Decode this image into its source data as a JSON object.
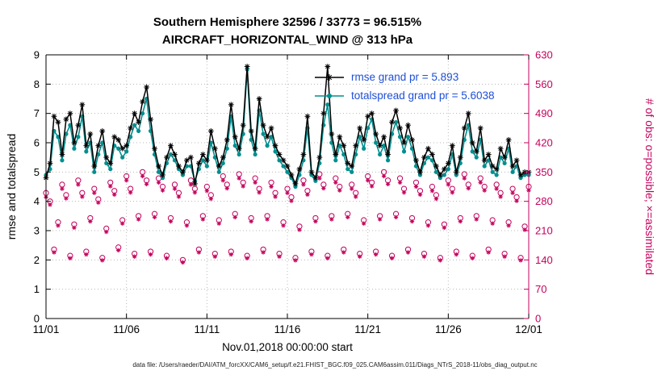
{
  "chart_data": {
    "type": "line",
    "title": "Southern Hemisphere 32596 / 33773 = 96.515%",
    "subtitle": "AIRCRAFT_HORIZONTAL_WIND @ 313 hPa",
    "xlabel": "Nov.01,2018 00:00:00 start",
    "ylabel_left": "rmse and totalspread",
    "ylabel_right": "# of obs: o=possible; ×=assimilated",
    "caption": "data file: /Users/raeder/DAI/ATM_forcXX/CAM6_setup/f.e21.FHIST_BGC.f09_025.CAM6assim.011/Diags_NTrS_2018-11/obs_diag_output.nc",
    "xlim": [
      0,
      30
    ],
    "ylim_left": [
      0,
      9
    ],
    "ylim_right": [
      0,
      630
    ],
    "yticks_left": [
      0,
      1,
      2,
      3,
      4,
      5,
      6,
      7,
      8,
      9
    ],
    "yticks_right": [
      0,
      70,
      140,
      210,
      280,
      350,
      420,
      490,
      560,
      630
    ],
    "xticks": [
      {
        "pos": 0,
        "label": "11/01"
      },
      {
        "pos": 5,
        "label": "11/06"
      },
      {
        "pos": 10,
        "label": "11/11"
      },
      {
        "pos": 15,
        "label": "11/16"
      },
      {
        "pos": 20,
        "label": "11/21"
      },
      {
        "pos": 25,
        "label": "11/26"
      },
      {
        "pos": 30,
        "label": "12/01"
      }
    ],
    "x_start_days": 0,
    "x_step_days": 0.25,
    "colors": {
      "rmse": "#000000",
      "totalspread": "#008f8f",
      "obs": "#c4005c",
      "legend_text": "#1e4fd6",
      "grid": "#b8b8b8"
    },
    "series": [
      {
        "name": "rmse",
        "legend": "rmse grand pr = 5.893",
        "axis": "left",
        "marker": "star",
        "values": [
          4.8,
          5.3,
          6.9,
          6.7,
          5.6,
          6.8,
          7.0,
          6.0,
          6.6,
          7.3,
          5.9,
          6.3,
          5.2,
          5.9,
          6.4,
          5.5,
          5.3,
          6.2,
          6.1,
          5.8,
          5.9,
          6.5,
          7.0,
          6.7,
          7.4,
          7.9,
          6.8,
          5.8,
          5.2,
          4.9,
          5.5,
          5.9,
          5.6,
          5.2,
          5.0,
          5.4,
          5.5,
          4.6,
          5.3,
          5.6,
          5.4,
          6.4,
          5.8,
          5.2,
          5.5,
          6.1,
          7.3,
          6.2,
          5.8,
          6.6,
          8.6,
          6.4,
          5.8,
          7.5,
          6.6,
          6.2,
          6.5,
          5.9,
          5.6,
          5.4,
          5.2,
          4.9,
          4.6,
          5.1,
          5.6,
          6.9,
          5.0,
          4.8,
          5.5,
          7.0,
          8.6,
          6.3,
          5.6,
          6.2,
          5.9,
          5.3,
          5.2,
          5.9,
          6.5,
          6.1,
          6.9,
          7.0,
          6.3,
          5.9,
          6.2,
          5.6,
          6.7,
          7.1,
          6.5,
          6.0,
          6.6,
          6.1,
          5.4,
          5.0,
          5.5,
          5.8,
          5.6,
          5.2,
          4.9,
          5.1,
          5.3,
          5.9,
          5.0,
          5.5,
          6.5,
          7.0,
          6.0,
          5.7,
          6.5,
          5.4,
          5.6,
          5.2,
          5.1,
          5.8,
          5.5,
          6.1,
          5.2,
          5.4,
          4.9,
          5.0,
          5.0
        ]
      },
      {
        "name": "totalspread",
        "legend": "totalspread grand pr = 5.6038",
        "axis": "left",
        "marker": "dot",
        "values": [
          4.9,
          5.1,
          6.4,
          6.2,
          5.4,
          6.3,
          6.6,
          5.8,
          6.2,
          6.9,
          5.7,
          6.0,
          5.0,
          5.6,
          6.0,
          5.3,
          5.1,
          5.9,
          5.8,
          5.5,
          5.7,
          6.2,
          6.6,
          6.4,
          7.0,
          7.5,
          6.4,
          5.6,
          5.0,
          4.8,
          5.3,
          5.6,
          5.4,
          5.1,
          4.9,
          5.2,
          5.2,
          4.7,
          5.1,
          5.4,
          5.2,
          6.0,
          5.5,
          5.0,
          5.3,
          5.8,
          6.9,
          5.9,
          5.6,
          6.3,
          8.5,
          6.1,
          5.6,
          7.1,
          6.3,
          5.9,
          6.2,
          5.7,
          5.4,
          5.2,
          5.0,
          4.8,
          4.5,
          4.9,
          5.4,
          6.5,
          4.9,
          4.7,
          5.3,
          6.6,
          7.3,
          6.0,
          5.4,
          5.9,
          5.6,
          5.1,
          5.0,
          5.6,
          6.2,
          5.8,
          6.5,
          6.8,
          6.0,
          5.6,
          5.9,
          5.4,
          6.3,
          6.7,
          6.2,
          5.7,
          6.2,
          5.8,
          5.2,
          4.9,
          5.3,
          5.5,
          5.4,
          5.0,
          4.8,
          4.9,
          5.1,
          5.6,
          4.9,
          5.3,
          6.1,
          6.6,
          5.7,
          5.5,
          6.1,
          5.2,
          5.4,
          5.0,
          4.9,
          5.5,
          5.3,
          5.8,
          5.0,
          5.2,
          4.8,
          4.9,
          4.9
        ]
      },
      {
        "name": "possible",
        "axis": "right",
        "marker": "circle",
        "values": [
          300,
          280,
          165,
          230,
          320,
          295,
          150,
          225,
          330,
          300,
          160,
          240,
          310,
          285,
          145,
          215,
          325,
          305,
          170,
          235,
          340,
          310,
          155,
          245,
          350,
          330,
          160,
          250,
          335,
          315,
          150,
          240,
          320,
          300,
          140,
          230,
          330,
          310,
          165,
          245,
          315,
          295,
          155,
          235,
          340,
          320,
          160,
          250,
          345,
          325,
          150,
          240,
          335,
          310,
          165,
          245,
          325,
          300,
          155,
          230,
          310,
          290,
          145,
          220,
          330,
          305,
          160,
          240,
          345,
          320,
          150,
          245,
          335,
          315,
          165,
          250,
          320,
          300,
          155,
          235,
          340,
          325,
          160,
          245,
          350,
          330,
          150,
          250,
          335,
          310,
          165,
          240,
          325,
          305,
          155,
          230,
          315,
          295,
          145,
          225,
          330,
          310,
          160,
          240,
          345,
          320,
          150,
          245,
          335,
          315,
          165,
          235,
          320,
          300,
          155,
          230,
          310,
          290,
          145,
          220,
          315
        ]
      },
      {
        "name": "assimilated",
        "axis": "right",
        "marker": "star",
        "values": [
          290,
          272,
          158,
          222,
          310,
          287,
          144,
          217,
          320,
          291,
          153,
          232,
          300,
          277,
          139,
          207,
          316,
          296,
          163,
          227,
          330,
          301,
          148,
          237,
          340,
          321,
          153,
          242,
          325,
          306,
          144,
          232,
          310,
          291,
          134,
          222,
          320,
          301,
          158,
          237,
          305,
          286,
          148,
          227,
          330,
          311,
          153,
          242,
          335,
          316,
          144,
          232,
          325,
          301,
          158,
          237,
          315,
          291,
          148,
          222,
          300,
          281,
          139,
          212,
          320,
          296,
          153,
          232,
          335,
          311,
          144,
          237,
          325,
          306,
          158,
          242,
          310,
          291,
          148,
          227,
          330,
          316,
          153,
          237,
          340,
          321,
          144,
          242,
          325,
          301,
          158,
          232,
          315,
          296,
          148,
          222,
          305,
          286,
          139,
          217,
          320,
          301,
          153,
          232,
          335,
          311,
          144,
          237,
          325,
          306,
          158,
          227,
          310,
          291,
          148,
          222,
          300,
          281,
          139,
          212,
          306
        ]
      }
    ]
  }
}
